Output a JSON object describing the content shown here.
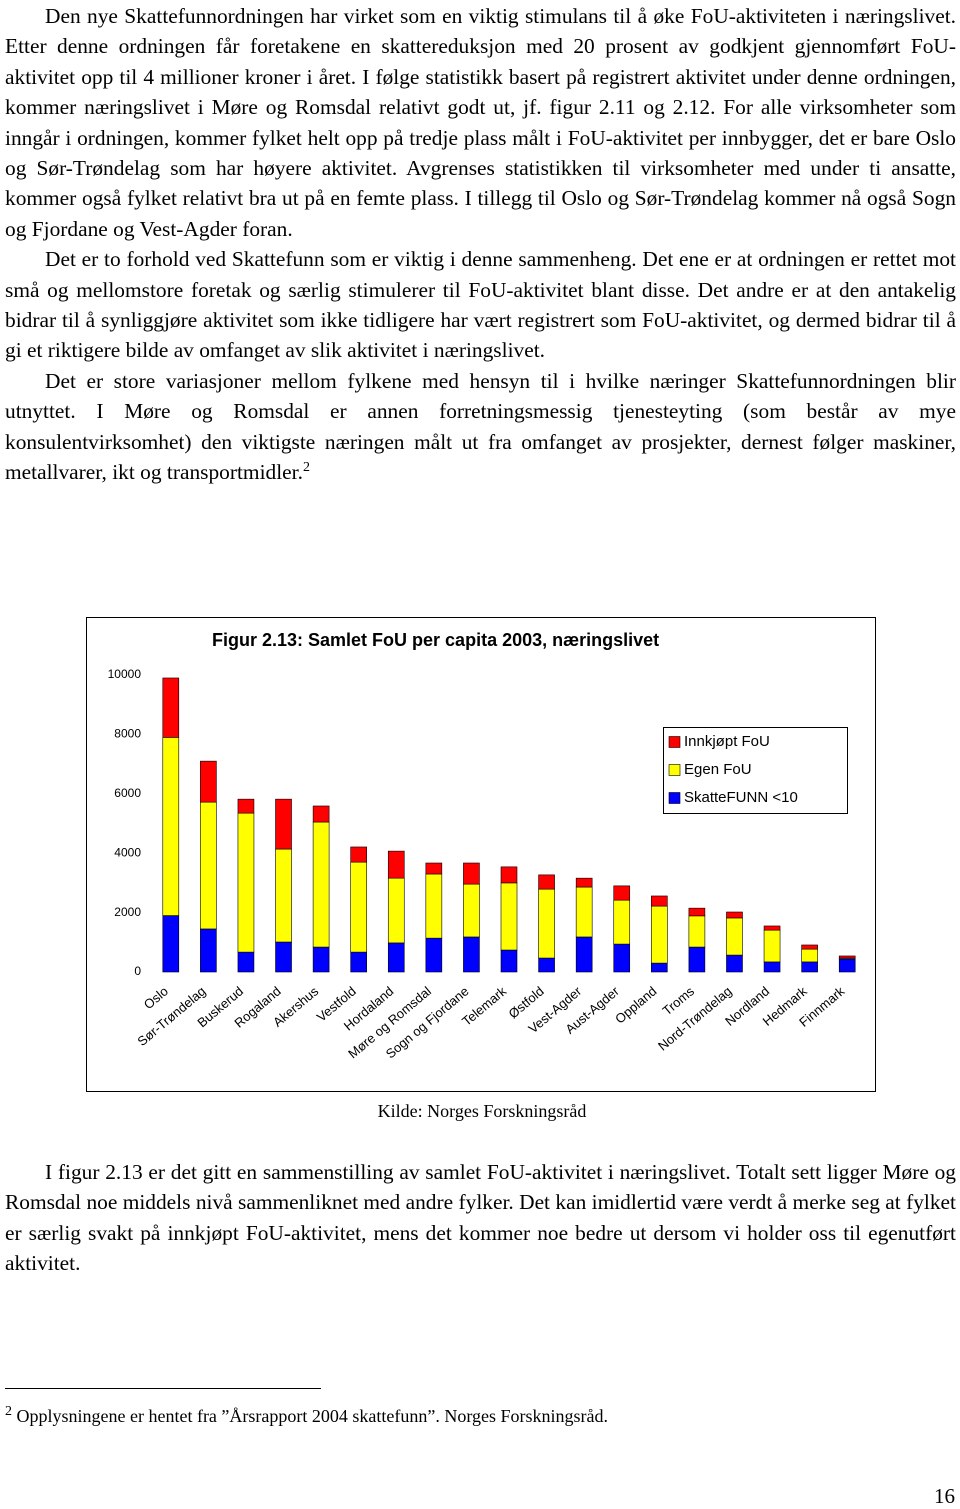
{
  "paragraphs_before": [
    "Den nye Skattefunnordningen har virket som en viktig stimulans til å øke FoU-aktiviteten i næringslivet. Etter denne ordningen får foretakene en skattereduksjon med 20 prosent av godkjent gjennomført FoU-aktivitet opp til 4 millioner kroner i året. I følge statistikk basert på registrert aktivitet under denne ordningen, kommer næringslivet i Møre og Romsdal relativt godt ut, jf. figur 2.11 og 2.12. For alle virksomheter som inngår i ordningen, kommer fylket helt opp på tredje plass målt i FoU-aktivitet per innbygger, det er bare Oslo og Sør-Trøndelag som har høyere aktivitet. Avgrenses statistikken til virksomheter med under ti ansatte, kommer også fylket relativt bra ut på en femte plass. I tillegg til Oslo og Sør-Trøndelag kommer nå også Sogn og Fjordane og Vest-Agder foran.",
    "Det er to forhold ved Skattefunn som er viktig i denne sammenheng. Det ene er at ordningen er rettet mot små og mellomstore foretak og særlig stimulerer til FoU-aktivitet blant disse. Det andre er at den antakelig bidrar til å synliggjøre aktivitet som ikke tid­ligere har vært registrert som FoU-aktivitet, og dermed bidrar til å gi et riktigere bilde av omfanget av slik aktivitet i næringslivet.",
    "Det er store variasjoner mellom fylkene med hensyn til i hvilke næringer Skattefunn­ordningen blir utnyttet. I Møre og Romsdal er annen forretningsmessig tjenesteyting (som består av mye konsulentvirksomhet) den viktigste næringen målt ut fra omfanget av prosjekter, dernest følger maskiner, metallvarer, ikt og transportmidler."
  ],
  "footnote_ref": "2",
  "chart_data": {
    "type": "stacked_bar",
    "title": "Figur 2.13: Samlet FoU per capita 2003, næringslivet",
    "categories": [
      "Oslo",
      "Sør-Trøndelag",
      "Buskerud",
      "Rogaland",
      "Akershus",
      "Vestfold",
      "Hordaland",
      "Møre og Romsdal",
      "Sogn og Fjordane",
      "Telemark",
      "Østfold",
      "Vest-Agder",
      "Aust-Agder",
      "Oppland",
      "Troms",
      "Nord-Trøndelag",
      "Nordland",
      "Hedmark",
      "Finnmark"
    ],
    "series": [
      {
        "name": "SkatteFUNN <10",
        "color": "#0000ff",
        "values": [
          1900,
          1450,
          670,
          1010,
          840,
          670,
          980,
          1140,
          1180,
          740,
          470,
          1180,
          940,
          300,
          840,
          570,
          340,
          340,
          440
        ]
      },
      {
        "name": "Egen FoU",
        "color": "#ffff00",
        "values": [
          6000,
          4270,
          4680,
          3130,
          4210,
          3030,
          2180,
          2160,
          1780,
          2260,
          2320,
          1680,
          1480,
          1920,
          1050,
          1250,
          1070,
          430,
          30
        ]
      },
      {
        "name": "Innkjøpt FoU",
        "color": "#ff0000",
        "values": [
          2000,
          1380,
          470,
          1680,
          540,
          510,
          910,
          370,
          710,
          540,
          480,
          300,
          480,
          340,
          260,
          200,
          140,
          140,
          70
        ]
      }
    ],
    "ylim": [
      0,
      10000
    ],
    "yticks": [
      0,
      2000,
      4000,
      6000,
      8000,
      10000
    ],
    "grid": false
  },
  "source": "Kilde: Norges Forskningsråd",
  "paragraphs_after": [
    "I figur 2.13 er det gitt en sammenstilling av samlet FoU-aktivitet i næringslivet. Totalt sett ligger Møre og Romsdal noe middels nivå sammenliknet med andre fylker. Det kan imidlertid være verdt å merke seg at fylket er særlig svakt på innkjøpt FoU-aktivitet, mens det kommer noe bedre ut dersom vi holder oss til egenutført aktivitet."
  ],
  "footnote": {
    "marker": "2",
    "text": "Opplysningene er hentet fra ”Årsrapport 2004 skattefunn”. Norges Forskningsråd."
  },
  "page_number": "16"
}
